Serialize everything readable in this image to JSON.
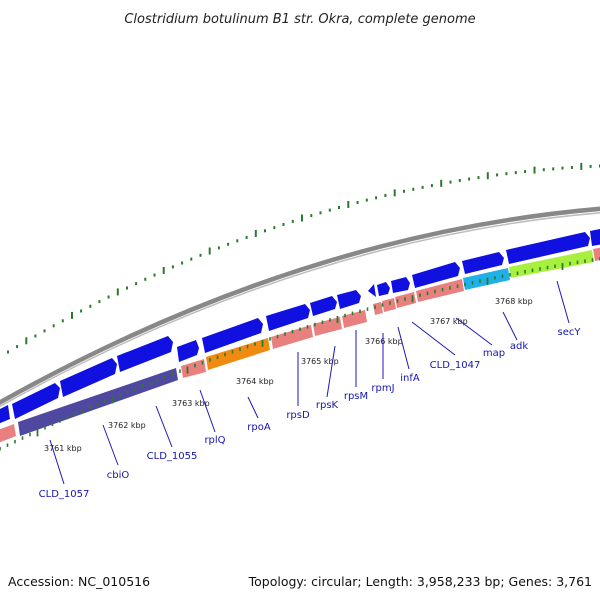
{
  "title": "Clostridium botulinum B1 str. Okra, complete genome",
  "footer": {
    "accession": "Accession: NC_010516",
    "summary": "Topology: circular; Length: 3,958,233 bp; Genes: 3,761"
  },
  "colors": {
    "backbone": "#888888",
    "cds": "#1010e0",
    "cds_dark": "#5048a0",
    "rna_pink": "#e88080",
    "orange": "#f08a10",
    "cyan": "#20b0e8",
    "lime": "#a8f040",
    "tick": "#2a7a2a",
    "label": "#1515b0"
  },
  "kbp_marks": [
    "3761 kbp",
    "3762 kbp",
    "3763 kbp",
    "3764 kbp",
    "3765 kbp",
    "3766 kbp",
    "3767 kbp",
    "3768 kbp"
  ],
  "gene_labels": [
    "CLD_1057",
    "cbiO",
    "CLD_1055",
    "rplQ",
    "rpoA",
    "rpsD",
    "rpsK",
    "rpsM",
    "rpmJ",
    "infA",
    "CLD_1047",
    "map",
    "adk",
    "secY"
  ]
}
